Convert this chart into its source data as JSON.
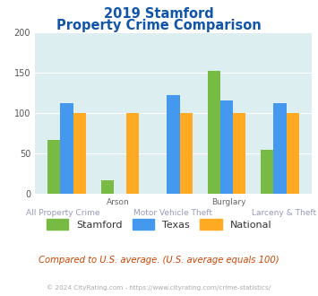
{
  "title_line1": "2019 Stamford",
  "title_line2": "Property Crime Comparison",
  "categories": [
    "All Property Crime",
    "Arson",
    "Motor Vehicle Theft",
    "Burglary",
    "Larceny & Theft"
  ],
  "x_labels_top": [
    "",
    "Arson",
    "",
    "Burglary",
    ""
  ],
  "x_labels_bottom": [
    "All Property Crime",
    "",
    "Motor Vehicle Theft",
    "",
    "Larceny & Theft"
  ],
  "stamford": [
    67,
    17,
    0,
    152,
    55
  ],
  "texas": [
    113,
    0,
    122,
    116,
    112
  ],
  "national": [
    100,
    100,
    100,
    100,
    100
  ],
  "stamford_color": "#77bb44",
  "texas_color": "#4499ee",
  "national_color": "#ffaa22",
  "ylim": [
    0,
    200
  ],
  "yticks": [
    0,
    50,
    100,
    150,
    200
  ],
  "plot_bg": "#ddeef0",
  "title_color": "#1155aa",
  "subtitle_note": "Compared to U.S. average. (U.S. average equals 100)",
  "footer": "© 2024 CityRating.com - https://www.cityrating.com/crime-statistics/",
  "subtitle_color": "#cc4400",
  "footer_color": "#aaaaaa",
  "legend_labels": [
    "Stamford",
    "Texas",
    "National"
  ]
}
